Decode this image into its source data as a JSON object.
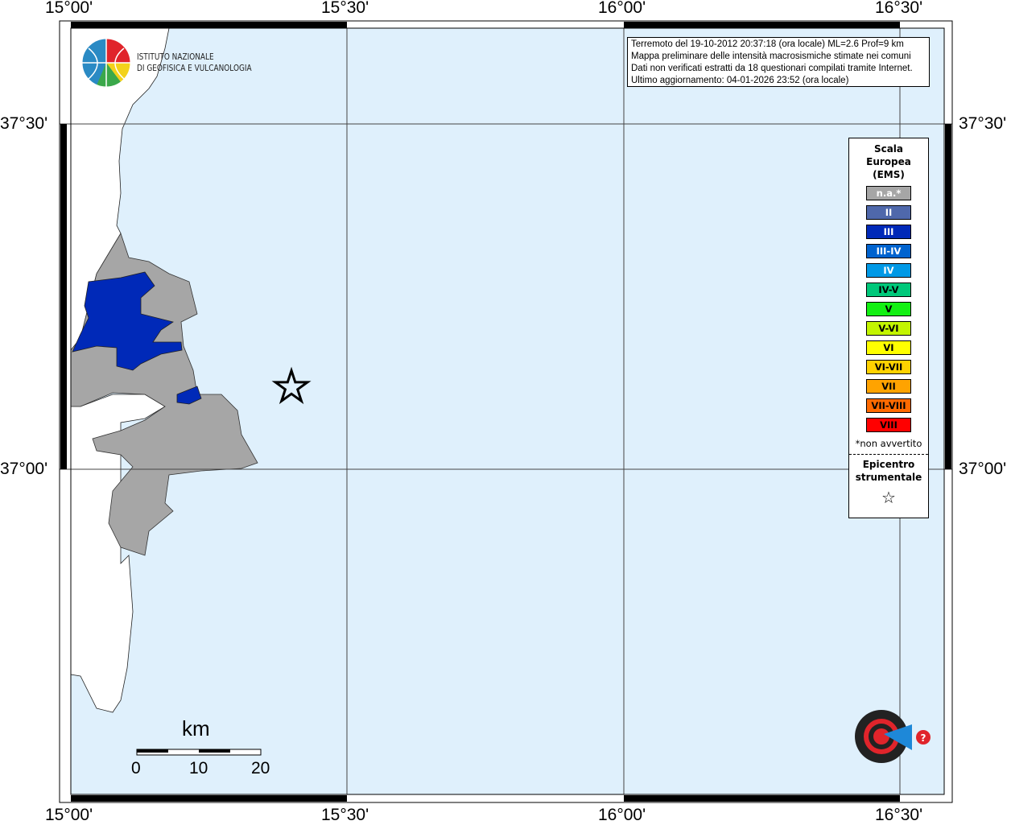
{
  "map": {
    "lon_labels": [
      "15°00'",
      "15°30'",
      "16°00'",
      "16°30'"
    ],
    "lat_labels": [
      "37°30'",
      "37°00'"
    ],
    "sea_color": "#dff0fc",
    "land_color": "#ffffff",
    "na_color": "#a6a6a6",
    "iii_color": "#0029b8",
    "epicenter_icon": "star-outline-icon"
  },
  "info": {
    "line1": "Terremoto del 19-10-2012 20:37:18 (ora locale) ML=2.6 Prof=9 km",
    "line2": "Mappa preliminare delle intensità macrosismiche stimate nei comuni",
    "line3": "Dati non verificati estratti da 18 questionari compilati tramite Internet.",
    "line4": "Ultimo aggiornamento: 04-01-2026 23:52 (ora locale)"
  },
  "logo": {
    "line1": "ISTITUTO NAZIONALE",
    "line2": "DI GEOFISICA E VULCANOLOGIA"
  },
  "legend": {
    "title1": "Scala",
    "title2": "Europea",
    "title3": "(EMS)",
    "items": [
      {
        "label": "n.a.*",
        "color": "#a6a6a6",
        "text": "#ffffff"
      },
      {
        "label": "II",
        "color": "#4f68ab",
        "text": "#ffffff"
      },
      {
        "label": "III",
        "color": "#0029b8",
        "text": "#ffffff"
      },
      {
        "label": "III-IV",
        "color": "#0063cf",
        "text": "#ffffff"
      },
      {
        "label": "IV",
        "color": "#0099e6",
        "text": "#ffffff"
      },
      {
        "label": "IV-V",
        "color": "#00c87a",
        "text": "#000000"
      },
      {
        "label": "V",
        "color": "#13f013",
        "text": "#000000"
      },
      {
        "label": "V-VI",
        "color": "#c3f500",
        "text": "#000000"
      },
      {
        "label": "VI",
        "color": "#ffff00",
        "text": "#000000"
      },
      {
        "label": "VI-VII",
        "color": "#ffd200",
        "text": "#000000"
      },
      {
        "label": "VII",
        "color": "#ffa300",
        "text": "#000000"
      },
      {
        "label": "VII-VIII",
        "color": "#ff6a00",
        "text": "#000000"
      },
      {
        "label": "VIII",
        "color": "#ff0000",
        "text": "#000000"
      }
    ],
    "note": "*non avvertito",
    "epi1": "Epicentro",
    "epi2": "strumentale",
    "epi_symbol": "☆"
  },
  "scale": {
    "unit": "km",
    "ticks": [
      "0",
      "10",
      "20"
    ]
  },
  "hsentito_logo": "www.haisentitoilterremoto.it"
}
